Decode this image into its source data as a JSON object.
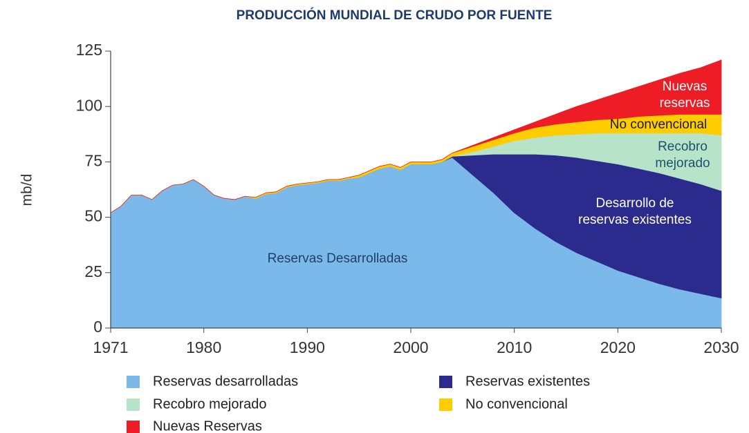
{
  "chart_data": {
    "type": "stacked_area",
    "title": "PRODUCCIÓN MUNDIAL DE CRUDO POR FUENTE",
    "ylabel": "mb/d",
    "x": [
      1971,
      1972,
      1973,
      1974,
      1975,
      1976,
      1977,
      1978,
      1979,
      1980,
      1981,
      1982,
      1983,
      1984,
      1985,
      1986,
      1987,
      1988,
      1989,
      1990,
      1991,
      1992,
      1993,
      1994,
      1995,
      1996,
      1997,
      1998,
      1999,
      2000,
      2001,
      2002,
      2003,
      2004,
      2006,
      2008,
      2010,
      2012,
      2014,
      2016,
      2018,
      2020,
      2022,
      2024,
      2026,
      2028,
      2030
    ],
    "xlim": [
      1971,
      2030
    ],
    "xticks": [
      1971,
      1980,
      1990,
      2000,
      2010,
      2020,
      2030
    ],
    "ylim": [
      0,
      125
    ],
    "yticks": [
      0,
      25,
      50,
      75,
      100,
      125
    ],
    "series": [
      {
        "name": "Reservas desarrolladas",
        "color": "#7ab9ea",
        "values": [
          52,
          55,
          60,
          60,
          58,
          62,
          64.5,
          65,
          67,
          64,
          60,
          58.5,
          58,
          59.5,
          58.5,
          60.5,
          61,
          63.5,
          64.5,
          65,
          65.5,
          66.5,
          66.5,
          67.5,
          68,
          70,
          72,
          73,
          71.5,
          74,
          74,
          74,
          75,
          77,
          69,
          61,
          52,
          45,
          39,
          34,
          30,
          26,
          23,
          20,
          17.5,
          15.5,
          13.5
        ]
      },
      {
        "name": "Reservas existentes",
        "color": "#2b2b8e",
        "values": [
          0,
          0,
          0,
          0,
          0,
          0,
          0,
          0,
          0,
          0,
          0,
          0,
          0,
          0,
          0,
          0,
          0,
          0,
          0,
          0,
          0,
          0,
          0,
          0,
          0,
          0,
          0,
          0,
          0,
          0,
          0,
          0,
          0,
          0.5,
          9,
          17.5,
          26.5,
          33.5,
          39,
          43,
          45.5,
          48,
          49,
          50,
          50,
          49.5,
          48.5
        ]
      },
      {
        "name": "Recobro mejorado",
        "color": "#b7e4c9",
        "values": [
          0,
          0,
          0,
          0,
          0,
          0,
          0,
          0,
          0,
          0,
          0,
          0,
          0,
          0,
          0,
          0,
          0,
          0,
          0,
          0,
          0,
          0,
          0,
          0,
          0,
          0,
          0,
          0,
          0,
          0,
          0,
          0,
          0,
          0,
          1.5,
          3.5,
          6,
          7.5,
          9,
          10.5,
          12.5,
          14,
          16,
          18,
          20.5,
          23,
          25
        ]
      },
      {
        "name": "No convencional",
        "color": "#ffcc00",
        "values": [
          0,
          0,
          0,
          0,
          0,
          0,
          0,
          0,
          0,
          0,
          0,
          0,
          0,
          0,
          0.5,
          0.5,
          0.5,
          0.5,
          0.5,
          0.5,
          0.5,
          0.5,
          0.5,
          0.5,
          1,
          1,
          1,
          1,
          1,
          1,
          1,
          1,
          1,
          1.5,
          2.5,
          3,
          3.5,
          4.5,
          5,
          5.5,
          6,
          6.5,
          7.5,
          8,
          8.5,
          8.5,
          9.5
        ]
      },
      {
        "name": "Nuevas Reservas",
        "color": "#ee1c25",
        "values": [
          0,
          0,
          0,
          0,
          0,
          0,
          0,
          0,
          0,
          0,
          0,
          0,
          0,
          0,
          0,
          0,
          0,
          0,
          0,
          0,
          0,
          0,
          0,
          0,
          0,
          0,
          0,
          0,
          0,
          0,
          0,
          0,
          0,
          0,
          0.5,
          1,
          1.5,
          2.5,
          4.5,
          7,
          9,
          11.5,
          13.5,
          16,
          18.5,
          21,
          24.5
        ]
      }
    ],
    "annotations": [
      {
        "lines": [
          "Reservas Desarrolladas"
        ]
      },
      {
        "lines": [
          "Desarrollo de",
          "reservas existentes"
        ]
      },
      {
        "lines": [
          "Recobro",
          "mejorado"
        ]
      },
      {
        "lines": [
          "No convencional"
        ]
      },
      {
        "lines": [
          "Nuevas",
          "reservas"
        ]
      }
    ]
  }
}
